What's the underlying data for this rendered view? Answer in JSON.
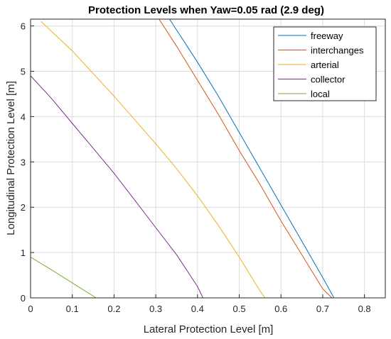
{
  "chart_data": {
    "type": "line",
    "title": "Protection Levels when Yaw=0.05 rad (2.9 deg)",
    "xlabel": "Lateral Protection Level [m]",
    "ylabel": "Longitudinal Protection Level [m]",
    "xlim": [
      0,
      0.85
    ],
    "ylim": [
      0,
      6.15
    ],
    "xticks": [
      "0",
      "0.1",
      "0.2",
      "0.3",
      "0.4",
      "0.5",
      "0.6",
      "0.7",
      "0.8"
    ],
    "yticks": [
      "0",
      "1",
      "2",
      "3",
      "4",
      "5",
      "6"
    ],
    "grid": true,
    "legend_position": "top-right",
    "series": [
      {
        "name": "freeway",
        "color": "#0072BD",
        "x": [
          0.333,
          0.4,
          0.45,
          0.5,
          0.55,
          0.6,
          0.65,
          0.7,
          0.727
        ],
        "y": [
          6.15,
          5.2,
          4.45,
          3.65,
          2.85,
          2.05,
          1.25,
          0.45,
          0.0
        ]
      },
      {
        "name": "interchanges",
        "color": "#D95319",
        "x": [
          0.308,
          0.35,
          0.4,
          0.45,
          0.5,
          0.55,
          0.6,
          0.65,
          0.7,
          0.722
        ],
        "y": [
          6.15,
          5.55,
          4.8,
          4.05,
          3.25,
          2.5,
          1.7,
          0.95,
          0.2,
          0.0
        ]
      },
      {
        "name": "arterial",
        "color": "#EDB120",
        "x": [
          0.025,
          0.1,
          0.2,
          0.3,
          0.35,
          0.4,
          0.45,
          0.5,
          0.55,
          0.562
        ],
        "y": [
          6.1,
          5.45,
          4.45,
          3.4,
          2.85,
          2.25,
          1.6,
          0.9,
          0.15,
          0.0
        ]
      },
      {
        "name": "collector",
        "color": "#7E2F8E",
        "x": [
          0.0,
          0.05,
          0.1,
          0.15,
          0.2,
          0.25,
          0.3,
          0.35,
          0.4,
          0.413
        ],
        "y": [
          4.9,
          4.4,
          3.85,
          3.3,
          2.75,
          2.15,
          1.55,
          0.95,
          0.25,
          0.0
        ]
      },
      {
        "name": "local",
        "color": "#77AC30",
        "x": [
          0.0,
          0.05,
          0.1,
          0.157
        ],
        "y": [
          0.9,
          0.62,
          0.33,
          0.0
        ]
      }
    ]
  }
}
